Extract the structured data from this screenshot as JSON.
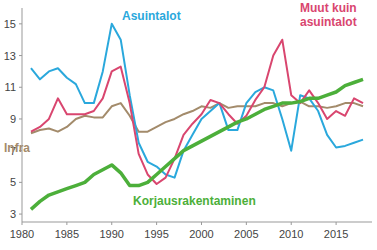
{
  "chart_data": {
    "type": "line",
    "x": [
      1981,
      1982,
      1983,
      1984,
      1985,
      1986,
      1987,
      1988,
      1989,
      1990,
      1991,
      1992,
      1993,
      1994,
      1995,
      1996,
      1997,
      1998,
      1999,
      2000,
      2001,
      2002,
      2003,
      2004,
      2005,
      2006,
      2007,
      2008,
      2009,
      2010,
      2011,
      2012,
      2013,
      2014,
      2015,
      2016,
      2017,
      2018
    ],
    "series": [
      {
        "name": "Infra",
        "color": "#a38b6b",
        "values": [
          8.1,
          8.3,
          8.4,
          8.2,
          8.5,
          9,
          9.2,
          9.1,
          9.1,
          9.8,
          10,
          9.2,
          8.2,
          8.2,
          8.5,
          8.8,
          9,
          9.3,
          9.5,
          9.8,
          9.7,
          10,
          9.7,
          9.8,
          9.8,
          9.8,
          10,
          10,
          9.8,
          10,
          10.1,
          9.8,
          9.8,
          9.7,
          9.8,
          10,
          10,
          9.8
        ]
      },
      {
        "name": "Asuintalot",
        "color": "#2aa8dc",
        "values": [
          12.2,
          11.5,
          12,
          12.2,
          11.6,
          11.2,
          10,
          10,
          12,
          15,
          14,
          10.5,
          7.5,
          6.3,
          6,
          5.5,
          5.3,
          7,
          8,
          9,
          9.5,
          10,
          8.3,
          8.3,
          10,
          10.7,
          11,
          10.8,
          9,
          7,
          10.5,
          10.3,
          9.5,
          8,
          7.2,
          7.3,
          7.5,
          7.7
        ]
      },
      {
        "name": "Muut kuin asuintalot",
        "color": "#d9466f",
        "values": [
          8.2,
          8.5,
          9,
          10.3,
          9.3,
          9.3,
          9.3,
          9.5,
          10.3,
          12,
          12.3,
          10,
          6.8,
          5.5,
          4.9,
          5.3,
          6.5,
          8,
          8.7,
          9.3,
          10.2,
          10,
          9.3,
          8.7,
          9.2,
          10.2,
          11,
          13,
          14,
          10.5,
          10,
          10.8,
          10,
          9,
          9.5,
          9.2,
          10.3,
          10
        ]
      },
      {
        "name": "Korjausrakentaminen",
        "color": "#4caf3a",
        "values": [
          3.3,
          3.8,
          4.2,
          4.4,
          4.6,
          4.8,
          5,
          5.5,
          5.8,
          6.1,
          5.6,
          4.8,
          4.8,
          5,
          5.5,
          6,
          6.5,
          7,
          7.3,
          7.6,
          7.9,
          8.2,
          8.5,
          8.8,
          9,
          9.3,
          9.6,
          9.8,
          10,
          10,
          10.1,
          10.3,
          10.3,
          10.5,
          10.7,
          11.1,
          11.3,
          11.5
        ]
      }
    ],
    "xlim": [
      1980,
      2019
    ],
    "xticks": [
      1980,
      1985,
      1990,
      1995,
      2000,
      2005,
      2010,
      2015
    ],
    "ylim": [
      2.5,
      16
    ],
    "yticks": [
      3,
      5,
      7,
      9,
      11,
      13,
      15
    ],
    "grid": false
  }
}
